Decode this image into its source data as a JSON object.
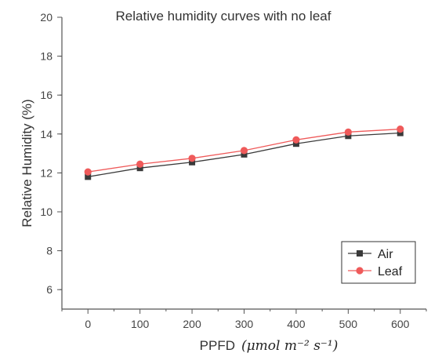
{
  "chart_data": {
    "type": "line",
    "title": "Relative humidity curves with no leaf",
    "xlabel": "PPFD",
    "xlabel_unit": "(μmol m⁻² s⁻¹)",
    "ylabel": "Relative Humidity (%)",
    "x": [
      0,
      100,
      200,
      300,
      400,
      500,
      600
    ],
    "xlim": [
      -50,
      650
    ],
    "ylim": [
      5,
      20
    ],
    "yticks": [
      6,
      8,
      10,
      12,
      14,
      16,
      18,
      20
    ],
    "series": [
      {
        "name": "Air",
        "color": "#3a3a3a",
        "marker": "square",
        "values": [
          11.8,
          12.25,
          12.55,
          12.95,
          13.5,
          13.9,
          14.05
        ]
      },
      {
        "name": "Leaf",
        "color": "#ef5a5a",
        "marker": "circle",
        "values": [
          12.05,
          12.45,
          12.75,
          13.15,
          13.7,
          14.1,
          14.25
        ]
      }
    ],
    "legend": "bottom-right",
    "grid": false
  }
}
